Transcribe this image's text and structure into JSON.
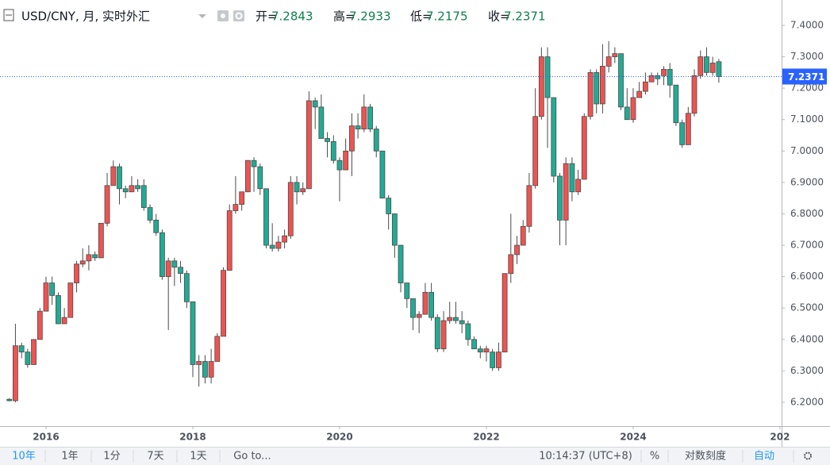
{
  "ui": {
    "header": {
      "symbol": "USD/CNY, 月, 实时外汇",
      "ohlc_keys": [
        "开=",
        "高=",
        "低=",
        "收="
      ]
    },
    "toolbar": {
      "left": [
        "10年",
        "1年",
        "1分",
        "7天",
        "1天",
        "Go to..."
      ],
      "right": [
        "10:14:37 (UTC+8)",
        "%",
        "对数刻度",
        "自动"
      ]
    }
  },
  "chart_data": {
    "type": "candlestick",
    "up_color": "#ef5350",
    "down_color": "#22ab94",
    "wick_color": "#4a4a4a",
    "last_price_color": "#2962ff",
    "grid": false,
    "xlim": [
      2015.373,
      2026.022
    ],
    "xticks": [
      2016,
      2018,
      2020,
      2022,
      2024,
      {
        "value": 2026,
        "label": "202"
      }
    ],
    "ylim": [
      6.1241,
      7.4808
    ],
    "yticks": [
      {
        "value": 7.4,
        "label": "7.4000"
      },
      {
        "value": 7.3,
        "label": "7.3000"
      },
      {
        "value": 7.2,
        "label": "7.2000"
      },
      {
        "value": 7.1,
        "label": "7.1000"
      },
      {
        "value": 7.0,
        "label": "7.0000"
      },
      {
        "value": 6.9,
        "label": "6.9000"
      },
      {
        "value": 6.8,
        "label": "6.8000"
      },
      {
        "value": 6.7,
        "label": "6.7000"
      },
      {
        "value": 6.6,
        "label": "6.6000"
      },
      {
        "value": 6.5,
        "label": "6.5000"
      },
      {
        "value": 6.4,
        "label": "6.4000"
      },
      {
        "value": 6.3,
        "label": "6.3000"
      },
      {
        "value": 6.2,
        "label": "6.2000"
      }
    ],
    "x": [
      2015.5,
      2015.583,
      2015.667,
      2015.75,
      2015.833,
      2015.917,
      2016,
      2016.083,
      2016.167,
      2016.25,
      2016.333,
      2016.417,
      2016.5,
      2016.583,
      2016.667,
      2016.75,
      2016.833,
      2016.917,
      2017,
      2017.083,
      2017.167,
      2017.25,
      2017.333,
      2017.417,
      2017.5,
      2017.583,
      2017.667,
      2017.75,
      2017.833,
      2017.917,
      2018,
      2018.083,
      2018.167,
      2018.25,
      2018.333,
      2018.417,
      2018.5,
      2018.583,
      2018.667,
      2018.75,
      2018.833,
      2018.917,
      2019,
      2019.083,
      2019.167,
      2019.25,
      2019.333,
      2019.417,
      2019.5,
      2019.583,
      2019.667,
      2019.75,
      2019.833,
      2019.917,
      2020,
      2020.083,
      2020.167,
      2020.25,
      2020.333,
      2020.417,
      2020.5,
      2020.583,
      2020.667,
      2020.75,
      2020.833,
      2020.917,
      2021,
      2021.083,
      2021.167,
      2021.25,
      2021.333,
      2021.417,
      2021.5,
      2021.583,
      2021.667,
      2021.75,
      2021.833,
      2021.917,
      2022,
      2022.083,
      2022.167,
      2022.25,
      2022.333,
      2022.417,
      2022.5,
      2022.583,
      2022.667,
      2022.75,
      2022.833,
      2022.917,
      2023,
      2023.083,
      2023.167,
      2023.25,
      2023.333,
      2023.417,
      2023.5,
      2023.583,
      2023.667,
      2023.75,
      2023.833,
      2023.917,
      2024,
      2024.083,
      2024.167,
      2024.25,
      2024.333,
      2024.417,
      2024.5,
      2024.583,
      2024.667,
      2024.75,
      2024.833,
      2024.917,
      2025,
      2025.083,
      2025.167
    ],
    "open": [
      6.2097,
      6.205,
      6.38,
      6.36,
      6.32,
      6.4,
      6.49,
      6.58,
      6.54,
      6.45,
      6.47,
      6.58,
      6.64,
      6.65,
      6.67,
      6.66,
      6.77,
      6.89,
      6.95,
      6.88,
      6.87,
      6.89,
      6.89,
      6.82,
      6.78,
      6.74,
      6.6,
      6.65,
      6.63,
      6.61,
      6.52,
      6.32,
      6.33,
      6.28,
      6.33,
      6.41,
      6.62,
      6.81,
      6.83,
      6.87,
      6.97,
      6.95,
      6.88,
      6.7,
      6.69,
      6.71,
      6.73,
      6.9,
      6.87,
      6.88,
      7.16,
      7.14,
      7.04,
      7.03,
      6.97,
      6.94,
      7.0,
      7.08,
      7.07,
      7.14,
      7.07,
      7.0,
      6.85,
      6.8,
      6.7,
      6.58,
      6.53,
      6.47,
      6.48,
      6.55,
      6.47,
      6.37,
      6.46,
      6.47,
      6.46,
      6.45,
      6.4,
      6.37,
      6.36,
      6.36,
      6.31,
      6.36,
      6.61,
      6.67,
      6.7,
      6.76,
      6.89,
      7.11,
      7.3,
      7.17,
      6.92,
      6.78,
      6.96,
      6.87,
      6.91,
      7.11,
      7.25,
      7.15,
      7.27,
      7.3,
      7.31,
      7.14,
      7.1,
      7.17,
      7.19,
      7.22,
      7.24,
      7.24,
      7.26,
      7.21,
      7.09,
      7.02,
      7.12,
      7.24,
      7.3,
      7.25,
      7.2843
    ],
    "high": [
      6.213,
      6.45,
      6.39,
      6.37,
      6.4,
      6.5,
      6.6,
      6.6,
      6.55,
      6.5,
      6.58,
      6.65,
      6.69,
      6.7,
      6.68,
      6.77,
      6.93,
      6.97,
      6.96,
      6.89,
      6.92,
      6.91,
      6.91,
      6.83,
      6.8,
      6.75,
      6.66,
      6.66,
      6.65,
      6.62,
      6.52,
      6.35,
      6.35,
      6.37,
      6.42,
      6.63,
      6.83,
      6.92,
      6.87,
      6.97,
      6.98,
      6.96,
      6.88,
      6.77,
      6.73,
      6.75,
      6.92,
      6.92,
      6.9,
      7.19,
      7.17,
      7.18,
      7.06,
      7.05,
      6.98,
      7.04,
      7.12,
      7.12,
      7.18,
      7.15,
      7.08,
      7.0,
      6.86,
      6.8,
      6.7,
      6.58,
      6.53,
      6.49,
      6.58,
      6.58,
      6.48,
      6.49,
      6.52,
      6.52,
      6.49,
      6.46,
      6.41,
      6.38,
      6.38,
      6.37,
      6.39,
      6.61,
      6.8,
      6.73,
      6.78,
      6.93,
      7.2,
      7.33,
      7.33,
      7.17,
      6.93,
      6.98,
      6.98,
      6.94,
      7.12,
      7.26,
      7.26,
      7.34,
      7.35,
      7.33,
      7.31,
      7.2,
      7.2,
      7.22,
      7.25,
      7.25,
      7.25,
      7.27,
      7.28,
      7.21,
      7.1,
      7.14,
      7.26,
      7.32,
      7.33,
      7.3,
      7.2933
    ],
    "low": [
      6.203,
      6.2,
      6.34,
      6.31,
      6.32,
      6.4,
      6.49,
      6.51,
      6.45,
      6.45,
      6.47,
      6.55,
      6.63,
      6.62,
      6.65,
      6.66,
      6.76,
      6.89,
      6.83,
      6.85,
      6.87,
      6.87,
      6.81,
      6.77,
      6.73,
      6.59,
      6.43,
      6.57,
      6.58,
      6.5,
      6.28,
      6.25,
      6.26,
      6.26,
      6.33,
      6.41,
      6.62,
      6.8,
      6.81,
      6.87,
      6.87,
      6.86,
      6.69,
      6.68,
      6.68,
      6.69,
      6.72,
      6.83,
      6.86,
      6.88,
      7.07,
      7.04,
      6.98,
      6.96,
      6.84,
      6.94,
      6.92,
      7.04,
      7.06,
      7.06,
      6.98,
      6.85,
      6.75,
      6.66,
      6.55,
      6.5,
      6.43,
      6.42,
      6.48,
      6.46,
      6.36,
      6.36,
      6.45,
      6.45,
      6.42,
      6.38,
      6.37,
      6.34,
      6.33,
      6.3,
      6.3,
      6.36,
      6.58,
      6.64,
      6.7,
      6.74,
      6.88,
      7.1,
      7.01,
      6.9,
      6.7,
      6.7,
      6.84,
      6.86,
      6.91,
      7.1,
      7.12,
      7.12,
      7.25,
      7.28,
      7.13,
      7.1,
      7.09,
      7.17,
      7.18,
      7.22,
      7.21,
      7.21,
      7.17,
      7.08,
      7.01,
      7.02,
      7.11,
      7.23,
      7.24,
      7.24,
      7.2175
    ],
    "close": [
      6.205,
      6.38,
      6.36,
      6.32,
      6.4,
      6.49,
      6.58,
      6.54,
      6.45,
      6.47,
      6.58,
      6.64,
      6.65,
      6.67,
      6.66,
      6.77,
      6.89,
      6.95,
      6.88,
      6.87,
      6.89,
      6.88,
      6.82,
      6.78,
      6.74,
      6.6,
      6.65,
      6.63,
      6.61,
      6.52,
      6.32,
      6.33,
      6.28,
      6.33,
      6.41,
      6.62,
      6.81,
      6.83,
      6.87,
      6.97,
      6.95,
      6.88,
      6.7,
      6.69,
      6.71,
      6.73,
      6.9,
      6.87,
      6.88,
      7.16,
      7.14,
      7.04,
      7.03,
      6.97,
      6.94,
      7.0,
      7.08,
      7.07,
      7.14,
      7.07,
      7.0,
      6.85,
      6.8,
      6.7,
      6.58,
      6.53,
      6.47,
      6.48,
      6.55,
      6.47,
      6.37,
      6.46,
      6.47,
      6.46,
      6.45,
      6.4,
      6.37,
      6.36,
      6.37,
      6.31,
      6.36,
      6.61,
      6.67,
      6.7,
      6.76,
      6.89,
      7.11,
      7.3,
      7.17,
      6.92,
      6.78,
      6.96,
      6.87,
      6.91,
      7.11,
      7.25,
      7.15,
      7.27,
      7.3,
      7.31,
      7.14,
      7.1,
      7.17,
      7.19,
      7.22,
      7.24,
      7.23,
      7.26,
      7.21,
      7.09,
      7.02,
      7.12,
      7.24,
      7.3,
      7.25,
      7.28,
      7.2371
    ]
  }
}
